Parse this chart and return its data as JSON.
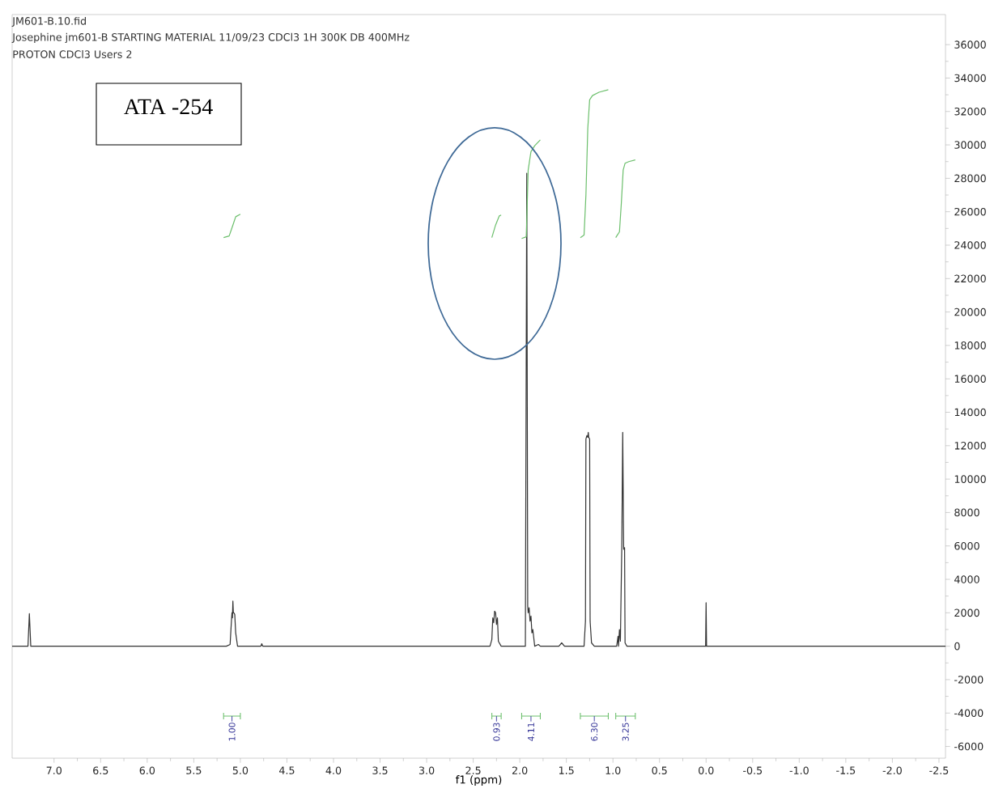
{
  "chart_data": {
    "type": "line",
    "xlabel": "f1 (ppm)",
    "annotations": [
      "JM601-B.10.fid",
      "Josephine jm601-B STARTING MATERIAL  11/09/23 CDCl3 1H 300K DB 400MHz",
      "PROTON CDCl3 Users 2",
      "ATA -254",
      "1.00",
      "0.93",
      "4.11",
      "6.30",
      "3.25"
    ],
    "series": [
      {
        "color": "#333333",
        "x": [
          7.45,
          7.28,
          7.265,
          7.25,
          5.15,
          5.11,
          5.1,
          5.09,
          5.085,
          5.08,
          5.075,
          5.07,
          5.06,
          5.05,
          5.03,
          4.78,
          4.77,
          4.76,
          2.32,
          2.3,
          2.29,
          2.28,
          2.27,
          2.26,
          2.25,
          2.24,
          2.23,
          2.2,
          1.94,
          1.925,
          1.915,
          1.91,
          1.9,
          1.89,
          1.88,
          1.87,
          1.86,
          1.84,
          1.8,
          1.78,
          1.58,
          1.55,
          1.52,
          1.31,
          1.295,
          1.29,
          1.28,
          1.27,
          1.265,
          1.26,
          1.25,
          1.245,
          1.23,
          1.2,
          0.96,
          0.945,
          0.94,
          0.93,
          0.92,
          0.905,
          0.895,
          0.885,
          0.875,
          0.87,
          0.85,
          0.005,
          0.0,
          -0.005,
          -2.57
        ],
        "values": [
          0,
          0,
          1950,
          0,
          0,
          100,
          1100,
          2000,
          1700,
          2700,
          2000,
          2000,
          1900,
          800,
          0,
          0,
          150,
          0,
          0,
          400,
          1700,
          1400,
          2100,
          2000,
          1300,
          1700,
          300,
          0,
          0,
          28300,
          2400,
          2000,
          2300,
          1500,
          1800,
          800,
          1000,
          0,
          100,
          0,
          0,
          200,
          0,
          0,
          1500,
          12400,
          12600,
          12500,
          12800,
          12500,
          12400,
          1500,
          200,
          0,
          0,
          600,
          0,
          1000,
          300,
          5900,
          12800,
          5800,
          5900,
          200,
          0,
          0,
          2600,
          0,
          0
        ]
      },
      {
        "color": "#6cbf6c",
        "x": [
          5.18,
          5.12,
          5.08,
          5.05,
          5.0
        ],
        "values": [
          24450,
          24550,
          25200,
          25700,
          25850
        ]
      },
      {
        "color": "#6cbf6c",
        "x": [
          2.3,
          2.26,
          2.22,
          2.2
        ],
        "values": [
          24450,
          25200,
          25750,
          25800
        ]
      },
      {
        "color": "#6cbf6c",
        "x": [
          1.98,
          1.93,
          1.92,
          1.91,
          1.88,
          1.84,
          1.78
        ],
        "values": [
          24400,
          24500,
          26500,
          28500,
          29600,
          29950,
          30300
        ]
      },
      {
        "color": "#6cbf6c",
        "x": [
          1.35,
          1.31,
          1.29,
          1.27,
          1.25,
          1.22,
          1.15,
          1.05
        ],
        "values": [
          24450,
          24600,
          27000,
          31000,
          32700,
          32950,
          33150,
          33300
        ]
      },
      {
        "color": "#6cbf6c",
        "x": [
          0.97,
          0.93,
          0.91,
          0.89,
          0.87,
          0.83,
          0.76
        ],
        "values": [
          24450,
          24800,
          26500,
          28500,
          28900,
          29000,
          29100
        ]
      }
    ],
    "xlim": [
      7.45,
      -2.57
    ],
    "xticks": [
      {
        "value": 7,
        "label": "7.0"
      },
      {
        "value": 6.5,
        "label": "6.5"
      },
      {
        "value": 6,
        "label": "6.0"
      },
      {
        "value": 5.5,
        "label": "5.5"
      },
      {
        "value": 5,
        "label": "5.0"
      },
      {
        "value": 4.5,
        "label": "4.5"
      },
      {
        "value": 4,
        "label": "4.0"
      },
      {
        "value": 3.5,
        "label": "3.5"
      },
      {
        "value": 3,
        "label": "3.0"
      },
      {
        "value": 2.5,
        "label": "2.5"
      },
      {
        "value": 2,
        "label": "2.0"
      },
      {
        "value": 1.5,
        "label": "1.5"
      },
      {
        "value": 1,
        "label": "1.0"
      },
      {
        "value": 0.5,
        "label": "0.5"
      },
      {
        "value": 0,
        "label": "0.0"
      },
      {
        "value": -0.5,
        "label": "-0.5"
      },
      {
        "value": -1,
        "label": "-1.0"
      },
      {
        "value": -1.5,
        "label": "-1.5"
      },
      {
        "value": -2,
        "label": "-2.0"
      },
      {
        "value": -2.5,
        "label": "-2.5"
      }
    ],
    "ylim": [
      -6700,
      37800
    ],
    "yticks": [
      -6000,
      -4000,
      -2000,
      0,
      2000,
      4000,
      6000,
      8000,
      10000,
      12000,
      14000,
      16000,
      18000,
      20000,
      22000,
      24000,
      26000,
      28000,
      30000,
      32000,
      34000,
      36000
    ],
    "grid": false,
    "marker": "none",
    "line_style": "solid"
  }
}
